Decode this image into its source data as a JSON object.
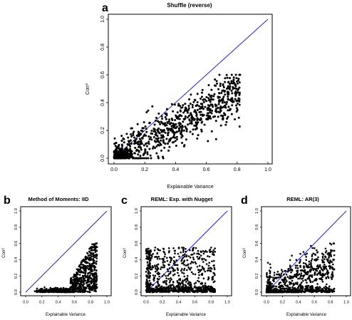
{
  "chart_data": [
    {
      "panel_label": "a",
      "type": "scatter",
      "title": "Shuffle (reverse)",
      "xlabel": "Explainable Variance",
      "ylabel": "Corr²",
      "xlim": [
        0,
        1
      ],
      "ylim": [
        0,
        1
      ],
      "x_ticks": [
        "0.0",
        "0.2",
        "0.4",
        "0.6",
        "0.8",
        "1.0"
      ],
      "y_ticks": [
        "0.0",
        "0.2",
        "0.4",
        "0.6",
        "0.8",
        "1.0"
      ],
      "reference_line": "y = x",
      "line_color": "#2222cc",
      "point_color": "#000000",
      "n_points": 900,
      "description_pattern": "points scatter roughly along y = 0.6x, x from 0 to 0.8, y from 0 to 0.6"
    },
    {
      "panel_label": "b",
      "type": "scatter",
      "title": "Method of Moments: IID",
      "xlabel": "Explainable Variance",
      "ylabel": "Corr²",
      "xlim": [
        0,
        1
      ],
      "ylim": [
        0,
        1
      ],
      "x_ticks": [
        "0.0",
        "0.2",
        "0.4",
        "0.6",
        "0.8",
        "1.0"
      ],
      "y_ticks": [
        "0.0",
        "0.2",
        "0.4",
        "0.6",
        "0.8",
        "1.0"
      ],
      "reference_line": "y = x",
      "line_color": "#2222cc",
      "point_color": "#000000",
      "n_points": 900
    },
    {
      "panel_label": "c",
      "type": "scatter",
      "title": "REML: Exp. with Nugget",
      "xlabel": "Explainable Variance",
      "ylabel": "Corr²",
      "xlim": [
        0,
        1
      ],
      "ylim": [
        0,
        1
      ],
      "x_ticks": [
        "0.0",
        "0.2",
        "0.4",
        "0.6",
        "0.8",
        "1.0"
      ],
      "y_ticks": [
        "0.0",
        "0.2",
        "0.4",
        "0.6",
        "0.8",
        "1.0"
      ],
      "reference_line": "y = x",
      "line_color": "#2222cc",
      "point_color": "#000000",
      "n_points": 900
    },
    {
      "panel_label": "d",
      "type": "scatter",
      "title": "REML: AR(3)",
      "xlabel": "Explainable Variance",
      "ylabel": "Corr²",
      "xlim": [
        0,
        1
      ],
      "ylim": [
        0,
        1
      ],
      "x_ticks": [
        "0.0",
        "0.2",
        "0.4",
        "0.6",
        "0.8",
        "1.0"
      ],
      "y_ticks": [
        "0.0",
        "0.2",
        "0.4",
        "0.6",
        "0.8",
        "1.0"
      ],
      "reference_line": "y = x",
      "line_color": "#2222cc",
      "point_color": "#000000",
      "n_points": 900
    }
  ]
}
